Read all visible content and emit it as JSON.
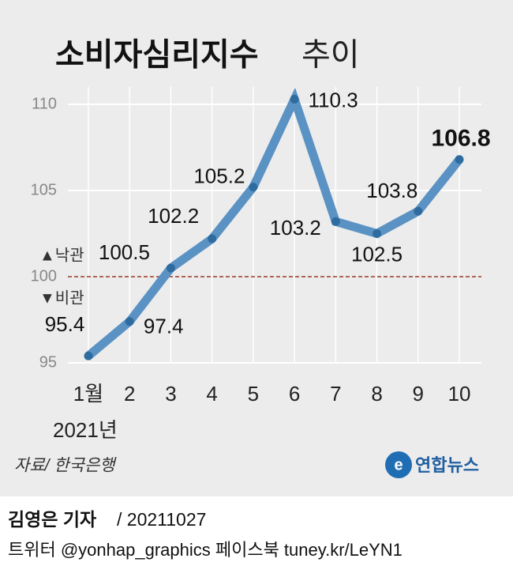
{
  "chart_data": {
    "type": "line",
    "title": "소비자심리지수",
    "title_suffix": "추이",
    "categories": [
      "1월",
      "2",
      "3",
      "4",
      "5",
      "6",
      "7",
      "8",
      "9",
      "10"
    ],
    "year_label": "2021년",
    "series": [
      {
        "name": "소비자심리지수",
        "color": "#5b92c4",
        "marker_color": "#2e6c9f",
        "values": [
          95.4,
          97.4,
          100.5,
          102.2,
          105.2,
          110.3,
          103.2,
          102.5,
          103.8,
          106.8
        ]
      }
    ],
    "ylim": [
      95,
      111
    ],
    "yticks": [
      95,
      100,
      105,
      110
    ],
    "grid": true,
    "reference": {
      "value": 100,
      "color": "#9a3b26",
      "above": "▲낙관",
      "below": "▼비관"
    },
    "source": "자료/ 한국은행",
    "logo": "연합뉴스"
  },
  "footer": {
    "reporter": "김영은 기자",
    "date": "/ 20211027",
    "social": "트위터 @yonhap_graphics  페이스북 tuney.kr/LeYN1"
  }
}
